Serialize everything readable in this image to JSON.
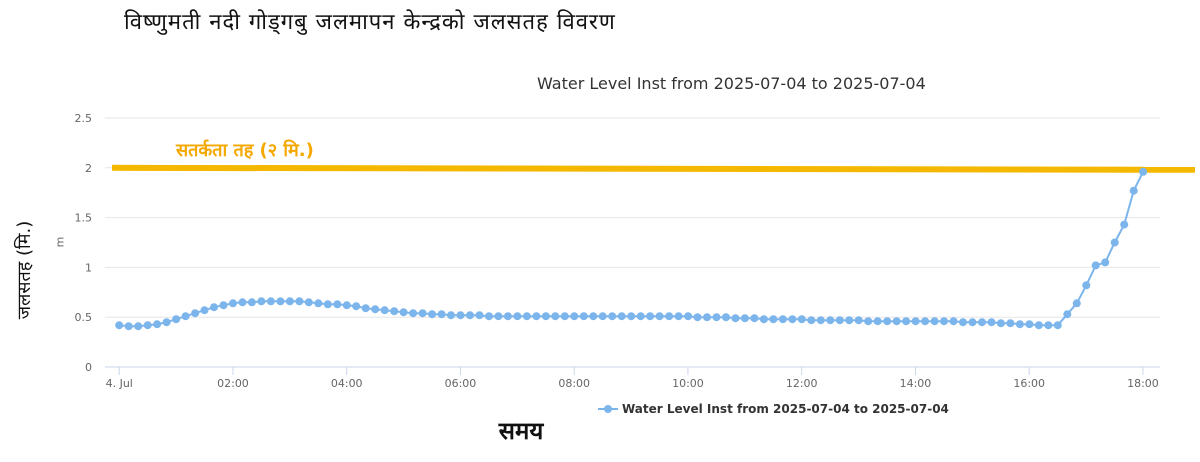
{
  "page_title": "विष्णुमती नदी गोड्गबु जलमापन केन्द्रको जलसतह विवरण",
  "ylabel_devanagari": "जलसतह (मि.)",
  "xlabel_devanagari": "समय",
  "colors": {
    "series": "#7cb5ec",
    "warning": "#f5b800",
    "grid": "#e6e6e6",
    "warning_label": "#f5a800"
  },
  "chart_data": {
    "type": "line",
    "title": "Water Level Inst from 2025-07-04 to 2025-07-04",
    "ylabel": "m",
    "xlabel": "",
    "ylim": [
      0,
      2.5
    ],
    "yticks": [
      "0",
      "0.5",
      "1",
      "1.5",
      "2",
      "2.5"
    ],
    "xlim_hours": [
      -0.25,
      18.3
    ],
    "xtick_labels": [
      "4. Jul",
      "02:00",
      "04:00",
      "06:00",
      "08:00",
      "10:00",
      "12:00",
      "14:00",
      "16:00",
      "18:00"
    ],
    "xtick_hours": [
      0,
      2,
      4,
      6,
      8,
      10,
      12,
      14,
      16,
      18
    ],
    "grid": true,
    "legend_position": "bottom-center",
    "warning_level": {
      "value": 2,
      "label": "सतर्कता तह (२ मि.)"
    },
    "series": [
      {
        "name": "Water Level Inst from 2025-07-04 to 2025-07-04",
        "interval_hours": 0.1667,
        "values": [
          0.42,
          0.41,
          0.41,
          0.42,
          0.43,
          0.45,
          0.48,
          0.51,
          0.54,
          0.57,
          0.6,
          0.62,
          0.64,
          0.65,
          0.65,
          0.66,
          0.66,
          0.66,
          0.66,
          0.66,
          0.65,
          0.64,
          0.63,
          0.63,
          0.62,
          0.61,
          0.59,
          0.58,
          0.57,
          0.56,
          0.55,
          0.54,
          0.54,
          0.53,
          0.53,
          0.52,
          0.52,
          0.52,
          0.52,
          0.51,
          0.51,
          0.51,
          0.51,
          0.51,
          0.51,
          0.51,
          0.51,
          0.51,
          0.51,
          0.51,
          0.51,
          0.51,
          0.51,
          0.51,
          0.51,
          0.51,
          0.51,
          0.51,
          0.51,
          0.51,
          0.51,
          0.5,
          0.5,
          0.5,
          0.5,
          0.49,
          0.49,
          0.49,
          0.48,
          0.48,
          0.48,
          0.48,
          0.48,
          0.47,
          0.47,
          0.47,
          0.47,
          0.47,
          0.47,
          0.46,
          0.46,
          0.46,
          0.46,
          0.46,
          0.46,
          0.46,
          0.46,
          0.46,
          0.46,
          0.45,
          0.45,
          0.45,
          0.45,
          0.44,
          0.44,
          0.43,
          0.43,
          0.42,
          0.42,
          0.42,
          0.53,
          0.64,
          0.82,
          1.02,
          1.05,
          1.25,
          1.43,
          1.77,
          1.96
        ]
      }
    ]
  }
}
